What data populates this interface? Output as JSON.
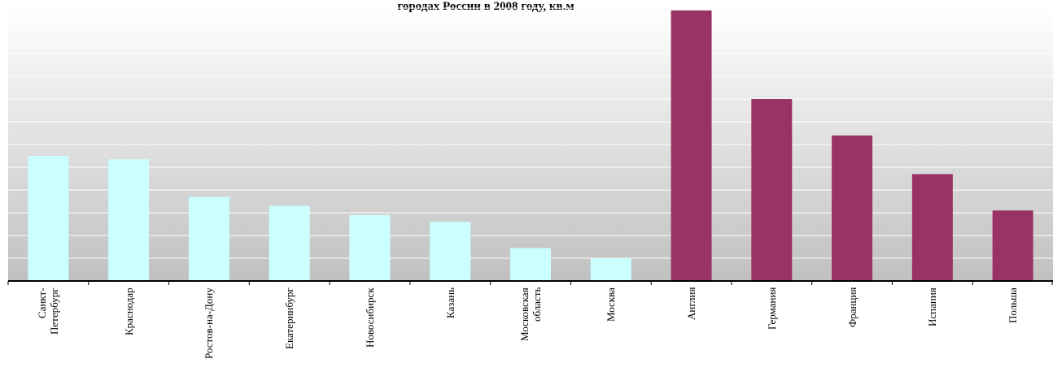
{
  "chart_data": {
    "type": "bar",
    "title": "городах России в 2008 году, кв.м",
    "categories": [
      "Санкт-\nПетербург",
      "Краснодар",
      "Ростов-на-Дону",
      "Екатеринбург",
      "Новосибирск",
      "Казань",
      "Московская\nобласть",
      "Москва",
      "Англия",
      "Германия",
      "Франция",
      "Испания",
      "Польша"
    ],
    "values": [
      550,
      535,
      370,
      330,
      290,
      260,
      145,
      100,
      1190,
      800,
      640,
      470,
      310
    ],
    "colors": [
      "#ccffff",
      "#ccffff",
      "#ccffff",
      "#ccffff",
      "#ccffff",
      "#ccffff",
      "#ccffff",
      "#ccffff",
      "#993366",
      "#993366",
      "#993366",
      "#993366",
      "#993366"
    ],
    "ylim": [
      0,
      1200
    ],
    "yticks": [
      0,
      100,
      200,
      300,
      400,
      500,
      600,
      700,
      800,
      900,
      1000,
      1100,
      1200
    ],
    "grid": true
  }
}
